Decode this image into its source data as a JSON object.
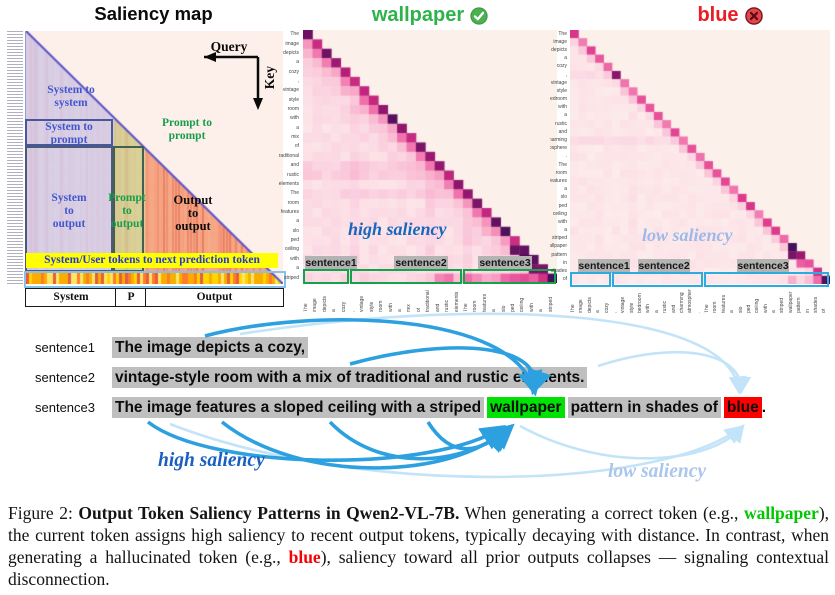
{
  "figure": {
    "schematic": {
      "title": "Saliency map",
      "query_label": "Query",
      "key_label": "Key",
      "labels": {
        "sys_sys": "System to\nsystem",
        "sys_prompt": "System to\nprompt",
        "prompt_prompt": "Prompt to\nprompt",
        "sys_out": "System\nto\noutput",
        "prompt_out": "Prompt\nto\noutput",
        "out_out": "Output\nto\noutput"
      },
      "banner": "System/User tokens to next prediction token",
      "x_axis": [
        "System",
        "P",
        "Output"
      ]
    },
    "correct_panel": {
      "title": "wallpaper",
      "verdict_icon": "check-circle-icon",
      "annotation": "high saliency",
      "tags": [
        "sentence1",
        "sentence2",
        "sentence3"
      ]
    },
    "halluc_panel": {
      "title": "blue",
      "verdict_icon": "cross-circle-icon",
      "annotation": "low saliency",
      "tags": [
        "sentence1",
        "sentence2",
        "sentence3"
      ]
    },
    "sentences": [
      {
        "tag": "sentence1",
        "runs": [
          [
            "The image depicts a cozy,",
            "gray"
          ]
        ]
      },
      {
        "tag": "sentence2",
        "runs": [
          [
            "vintage-style room with a mix of traditional and rustic elements.",
            "gray"
          ]
        ]
      },
      {
        "tag": "sentence3",
        "runs": [
          [
            "The image features a sloped ceiling with a striped",
            "gray"
          ],
          [
            "wallpaper",
            "green"
          ],
          [
            "pattern in shades of",
            "gray"
          ],
          [
            "blue",
            "red"
          ],
          [
            ".",
            "none"
          ]
        ]
      }
    ],
    "arrow_labels": {
      "high": "high saliency",
      "low": "low saliency"
    },
    "caption": [
      [
        "Figure 2: ",
        "n"
      ],
      [
        "Output Token Saliency Patterns in Qwen2-VL-7B.",
        "b"
      ],
      [
        " When generating a correct token (e.g., ",
        "n"
      ],
      [
        "wallpaper",
        "g"
      ],
      [
        "), the current token assigns high saliency to recent output tokens, typically decaying with distance. In contrast, when generating a hallucinated token (e.g., ",
        "n"
      ],
      [
        "blue",
        "r"
      ],
      [
        "), saliency toward all prior outputs collapses — signaling contextual disconnection.",
        "n"
      ]
    ],
    "colors": {
      "correct_green": "#2db34a",
      "halluc_red": "#ea1c24",
      "token_green_bg": "#00e104",
      "token_red_bg": "#fe0000",
      "sentence_gray_bg": "#bfbfbf",
      "high_saliency_blue": "#1a5fc0",
      "low_saliency_blue": "#a9c6ec",
      "arrow_dark": "#2da0e0",
      "arrow_light": "#c3e4f8",
      "group_box_green": "#12a44b",
      "group_box_cyan": "#2bacdf",
      "banner_yellow": "#ffff00"
    }
  },
  "chart_data": [
    {
      "type": "heatmap",
      "title": "Saliency map (schematic)",
      "axes": {
        "horizontal_arrow": "Query",
        "vertical_arrow": "Key"
      },
      "x_segments": [
        "System",
        "P",
        "Output"
      ],
      "regions": [
        "System to system",
        "System to prompt",
        "Prompt to prompt",
        "System to output",
        "Prompt to output",
        "Output to output",
        "System/User tokens to next prediction token"
      ],
      "layout": "lower-triangular attention saliency matrix; system block lavender, prompt block green, output block orange, bottom next-prediction row highlighted yellow"
    },
    {
      "type": "heatmap",
      "title": "wallpaper (correct token)",
      "profile": "high",
      "annotation": "high saliency",
      "tokens": [
        "The",
        "image",
        "depicts",
        "a",
        "cozy",
        ",",
        "vintage",
        "style",
        "room",
        "with",
        "a",
        "mix",
        "of",
        "traditional",
        "and",
        "rustic",
        "elements",
        "The",
        "room",
        "features",
        "a",
        "slo",
        "ped",
        "ceiling",
        "with",
        "a",
        "striped"
      ],
      "groups": [
        [
          0,
          5
        ],
        [
          5,
          17
        ],
        [
          17,
          27
        ]
      ],
      "group_labels": [
        "sentence1",
        "sentence2",
        "sentence3"
      ],
      "bottom_row_saliency": [
        0.14,
        0.1,
        0.12,
        0.08,
        0.15,
        0.1,
        0.16,
        0.13,
        0.11,
        0.09,
        0.08,
        0.12,
        0.14,
        0.18,
        0.42,
        0.48,
        0.22,
        0.5,
        0.4,
        0.3,
        0.34,
        0.52,
        0.58,
        0.62,
        0.55,
        0.72,
        0.97
      ],
      "diag_boosts": {
        "0": 0.92,
        "9": 0.95,
        "13": 0.85,
        "25": 0.9
      },
      "hot_cells": [
        [
          23,
          22,
          0.93
        ],
        [
          24,
          23,
          0.96
        ],
        [
          25,
          24,
          0.9
        ]
      ]
    },
    {
      "type": "heatmap",
      "title": "blue (hallucinated token)",
      "profile": "low",
      "annotation": "low saliency",
      "tokens": [
        "The",
        "image",
        "depicts",
        "a",
        "cozy",
        ",",
        "vintage",
        "style",
        "bedroom",
        "with",
        "a",
        "rustic",
        "and",
        "charming",
        "atmosphere",
        ".",
        "The",
        "room",
        "features",
        "a",
        "slo",
        "ped",
        "ceiling",
        "with",
        "a",
        "striped",
        "wallpaper",
        "pattern",
        "in",
        "shades",
        "of"
      ],
      "groups": [
        [
          0,
          5
        ],
        [
          5,
          16
        ],
        [
          16,
          31
        ]
      ],
      "group_labels": [
        "sentence1",
        "sentence2",
        "sentence3"
      ],
      "bottom_row_saliency": [
        0.05,
        0.03,
        0.04,
        0.03,
        0.04,
        0.06,
        0.04,
        0.03,
        0.04,
        0.03,
        0.03,
        0.05,
        0.04,
        0.03,
        0.04,
        0.03,
        0.06,
        0.04,
        0.04,
        0.03,
        0.04,
        0.05,
        0.06,
        0.05,
        0.06,
        0.08,
        0.28,
        0.12,
        0.22,
        0.55,
        0.95
      ],
      "diag_boosts": {
        "0": 0.7,
        "5": 0.88,
        "14": 0.6,
        "21": 0.7,
        "26": 0.97,
        "27": 0.85,
        "29": 0.72,
        "30": 0.9
      },
      "hot_cells": [
        [
          27,
          26,
          0.9
        ],
        [
          28,
          27,
          0.55
        ],
        [
          30,
          29,
          0.5
        ]
      ]
    }
  ]
}
